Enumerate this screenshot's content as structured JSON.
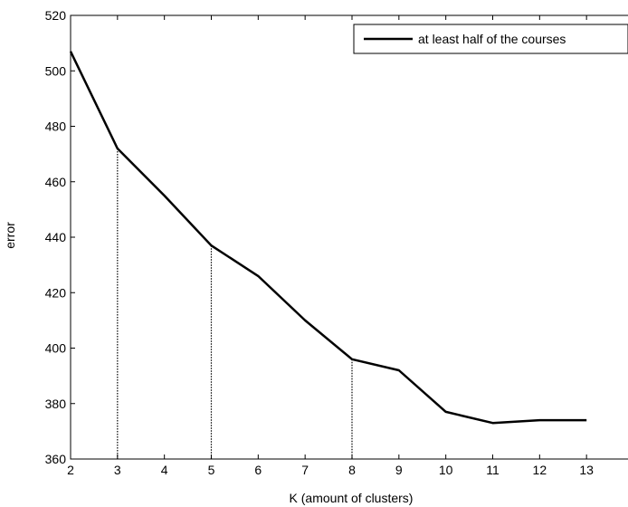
{
  "chart_data": {
    "type": "line",
    "title": "",
    "xlabel": "K (amount of clusters)",
    "ylabel": "error",
    "xlim": [
      2,
      14
    ],
    "ylim": [
      360,
      520
    ],
    "x_ticks": [
      2,
      3,
      4,
      5,
      6,
      7,
      8,
      9,
      10,
      11,
      12,
      13
    ],
    "y_ticks": [
      360,
      380,
      400,
      420,
      440,
      460,
      480,
      500,
      520
    ],
    "grid": false,
    "legend_position": "top-right",
    "series": [
      {
        "name": "at least half of the courses",
        "color": "#000000",
        "x": [
          2,
          3,
          4,
          5,
          6,
          7,
          8,
          9,
          10,
          11,
          12,
          13
        ],
        "y": [
          507,
          472,
          455,
          437,
          426,
          410,
          396,
          392,
          377,
          373,
          374,
          374
        ]
      }
    ],
    "annotations": {
      "type": "dotted-vertical-lines",
      "x": [
        3,
        5,
        8
      ]
    }
  }
}
